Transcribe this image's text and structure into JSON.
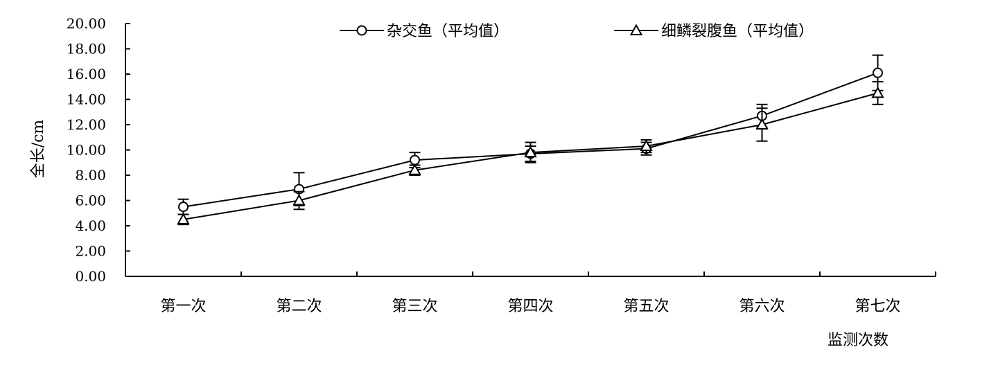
{
  "chart_data": {
    "type": "line",
    "title": "",
    "xlabel": "监测次数",
    "ylabel": "全长/cm",
    "categories": [
      "第一次",
      "第二次",
      "第三次",
      "第四次",
      "第五次",
      "第六次",
      "第七次"
    ],
    "ylim": [
      0,
      20
    ],
    "yticks": [
      "0.00",
      "2.00",
      "4.00",
      "6.00",
      "8.00",
      "10.00",
      "12.00",
      "14.00",
      "16.00",
      "18.00",
      "20.00"
    ],
    "grid": false,
    "legend_position": "top",
    "series": [
      {
        "name": "杂交鱼（平均值）",
        "marker": "circle",
        "values": [
          5.5,
          6.9,
          9.2,
          9.7,
          10.1,
          12.7,
          16.1
        ],
        "error": [
          0.6,
          1.3,
          0.6,
          0.6,
          0.5,
          0.9,
          1.4
        ]
      },
      {
        "name": "细鳞裂腹鱼（平均值）",
        "marker": "triangle",
        "values": [
          4.5,
          6.0,
          8.4,
          9.8,
          10.3,
          12.0,
          14.5
        ],
        "error": [
          0.4,
          0.7,
          0.4,
          0.8,
          0.5,
          1.3,
          0.9
        ]
      }
    ]
  }
}
